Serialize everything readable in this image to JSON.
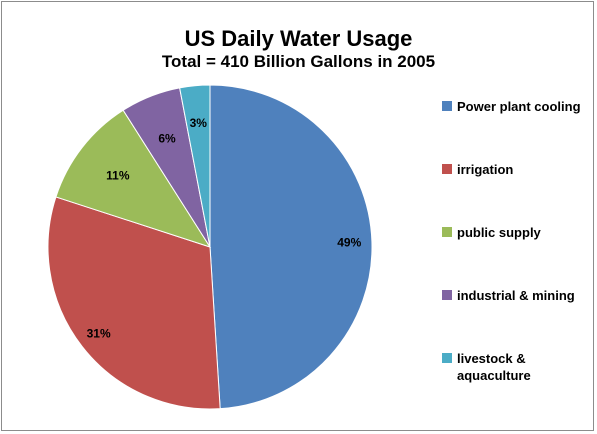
{
  "chart_data": {
    "type": "pie",
    "title": "US Daily Water Usage",
    "subtitle": "Total = 410 Billion Gallons in 2005",
    "slices": [
      {
        "label": "Power plant cooling",
        "value": 49,
        "value_label": "49%",
        "color": "#4F81BD"
      },
      {
        "label": "irrigation",
        "value": 31,
        "value_label": "31%",
        "color": "#C0504D"
      },
      {
        "label": "public supply",
        "value": 11,
        "value_label": "11%",
        "color": "#9BBB59"
      },
      {
        "label": "industrial & mining",
        "value": 6,
        "value_label": "6%",
        "color": "#8064A2"
      },
      {
        "label": "livestock & aquaculture",
        "value": 3,
        "value_label": "3%",
        "color": "#4BACC6"
      }
    ],
    "legend": {
      "position": "right"
    }
  }
}
